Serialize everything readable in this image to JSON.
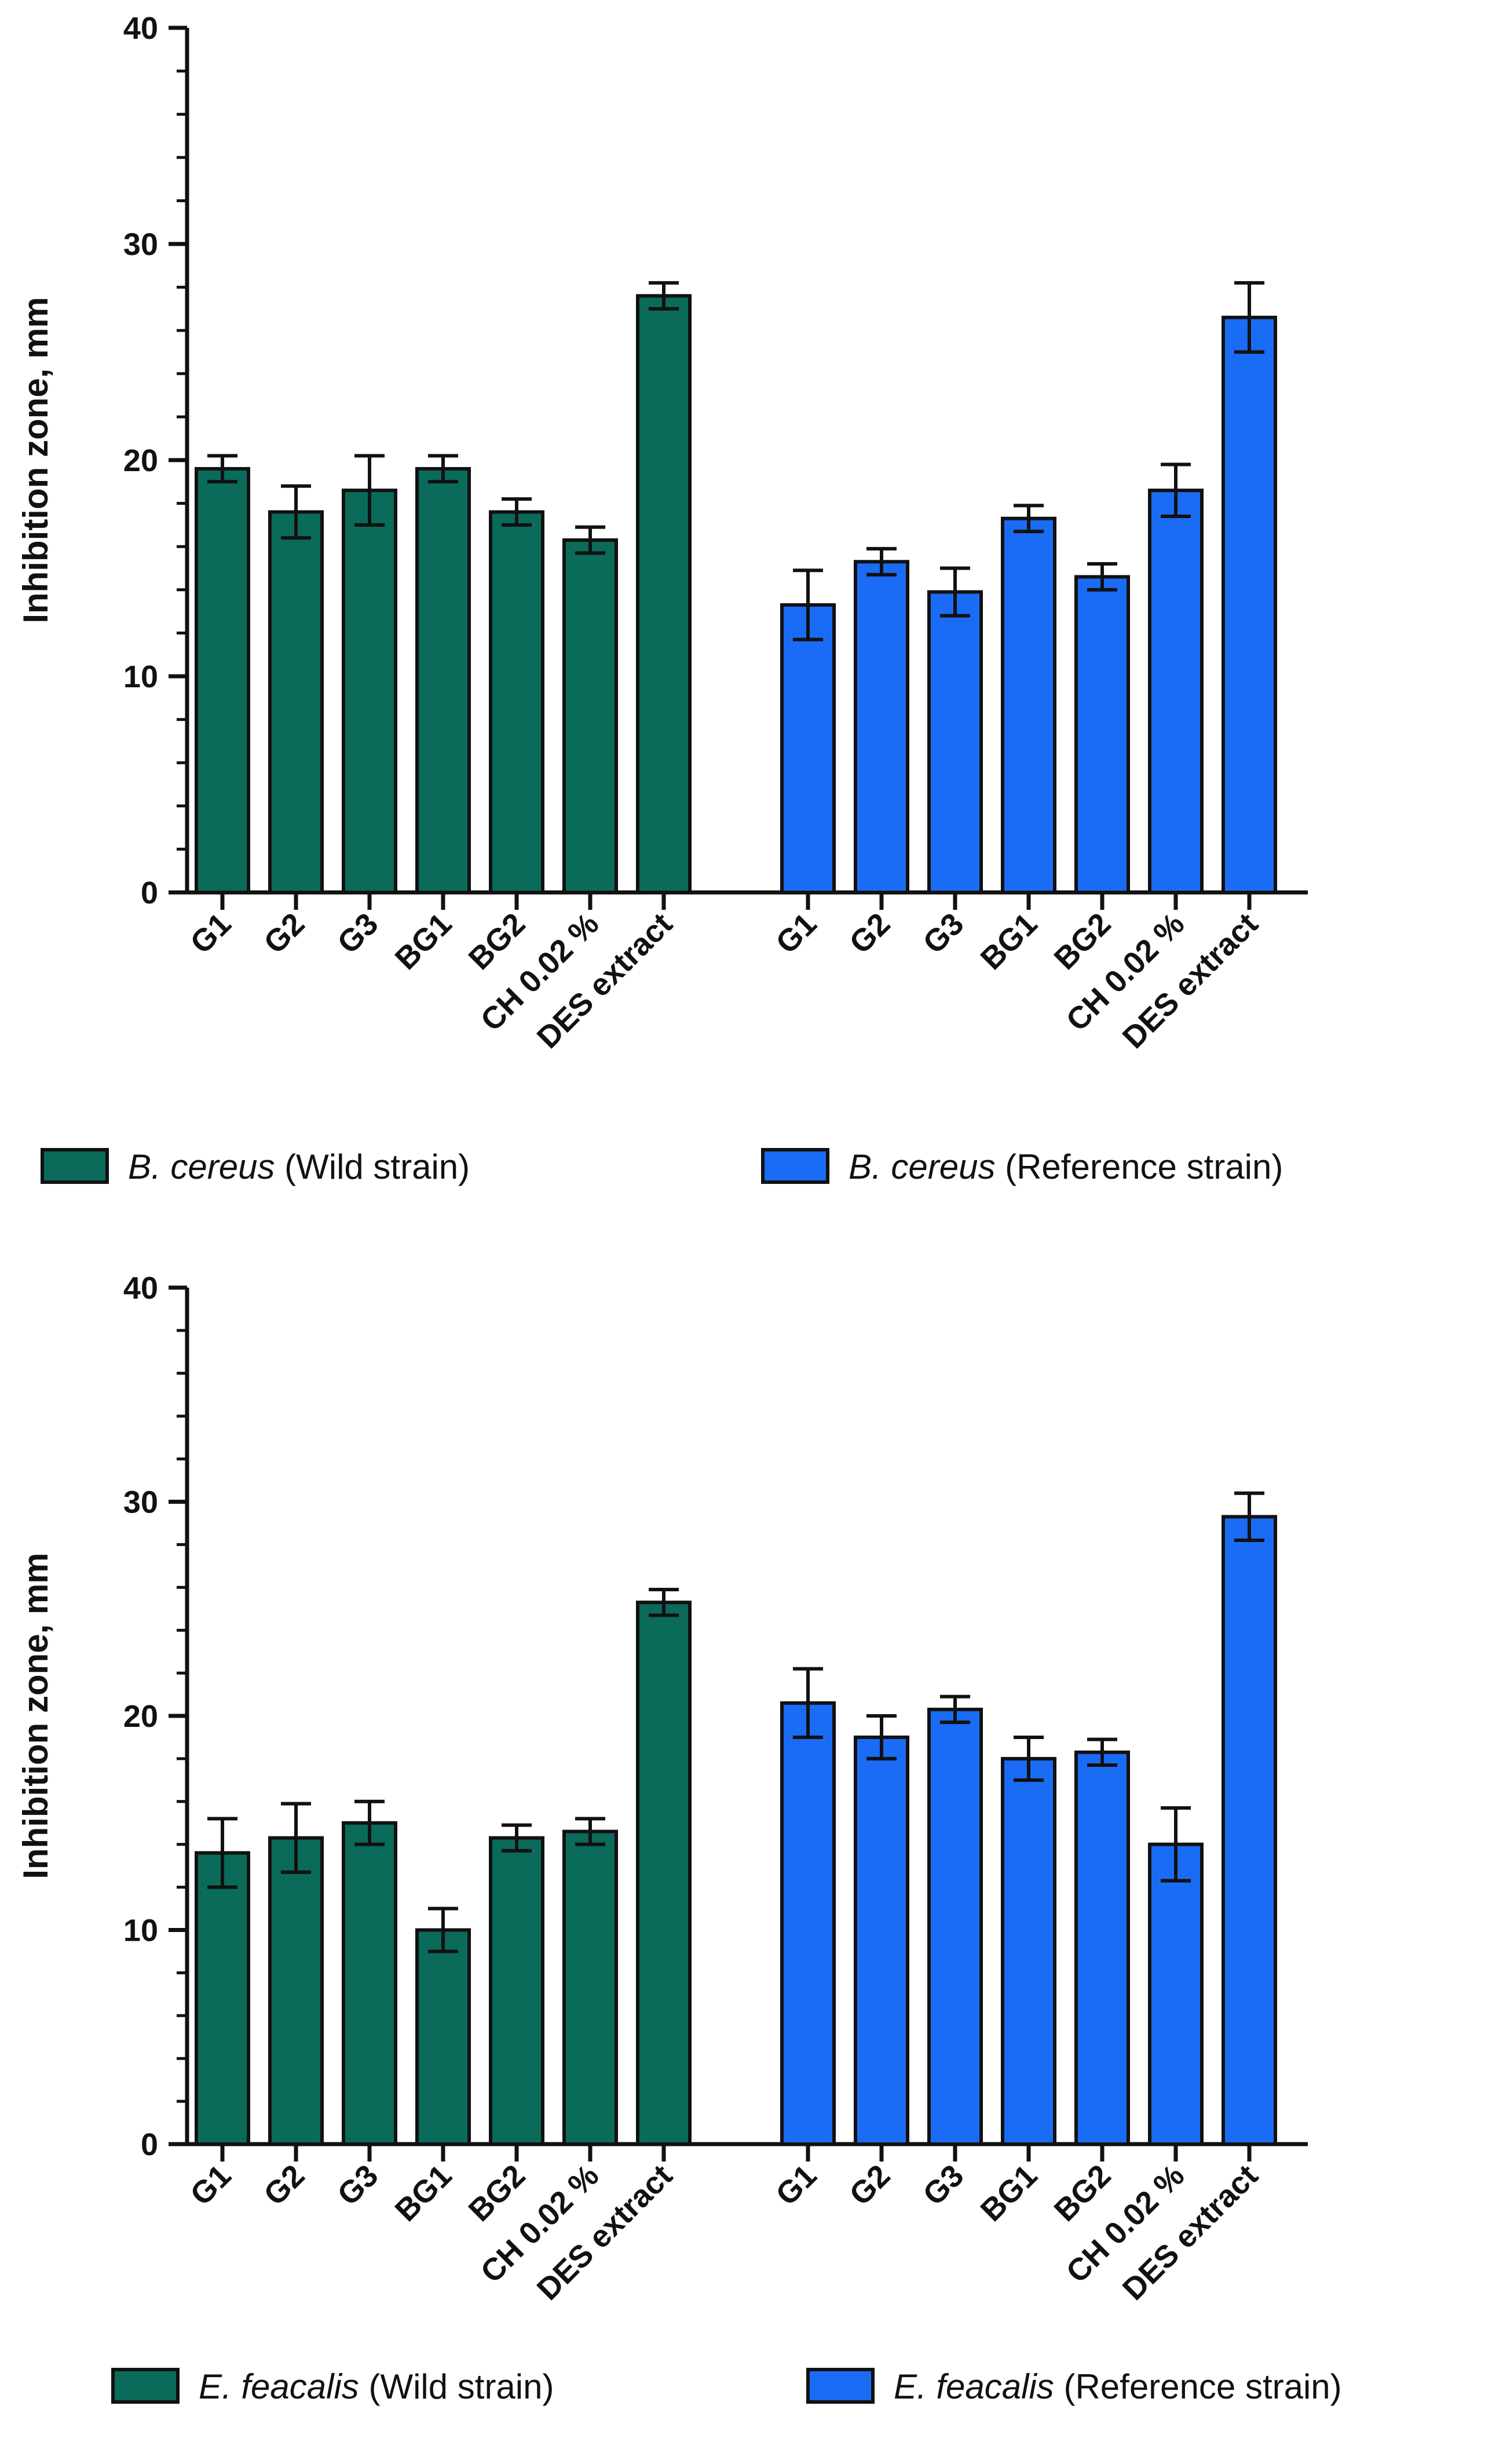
{
  "chart_data": [
    {
      "type": "bar",
      "ylabel": "Inhibition zone, mm",
      "ylim": [
        0,
        40
      ],
      "yticks": [
        "0",
        "10",
        "20",
        "30",
        "40"
      ],
      "groups": [
        {
          "name": "B. cereus (Wild strain)",
          "legend_italic": "B. cereus",
          "legend_rest": " (Wild strain)",
          "color": "#0a6b5a",
          "categories": [
            "G1",
            "G2",
            "G3",
            "BG1",
            "BG2",
            "CH 0.02 %",
            "DES extract"
          ],
          "values": [
            19.6,
            17.6,
            18.6,
            19.6,
            17.6,
            16.3,
            27.6
          ],
          "errors": [
            0.6,
            1.2,
            1.6,
            0.6,
            0.6,
            0.6,
            0.6
          ]
        },
        {
          "name": "B. cereus (Reference strain)",
          "legend_italic": "B. cereus",
          "legend_rest": " (Reference strain)",
          "color": "#1a6cf5",
          "categories": [
            "G1",
            "G2",
            "G3",
            "BG1",
            "BG2",
            "CH 0.02 %",
            "DES extract"
          ],
          "values": [
            13.3,
            15.3,
            13.9,
            17.3,
            14.6,
            18.6,
            26.6
          ],
          "errors": [
            1.6,
            0.6,
            1.1,
            0.6,
            0.6,
            1.2,
            1.6
          ]
        }
      ]
    },
    {
      "type": "bar",
      "ylabel": "Inhibition zone, mm",
      "ylim": [
        0,
        40
      ],
      "yticks": [
        "0",
        "10",
        "20",
        "30",
        "40"
      ],
      "groups": [
        {
          "name": "E. feacalis (Wild strain)",
          "legend_italic": "E. feacalis",
          "legend_rest": " (Wild strain)",
          "color": "#0a6b5a",
          "categories": [
            "G1",
            "G2",
            "G3",
            "BG1",
            "BG2",
            "CH 0.02 %",
            "DES extract"
          ],
          "values": [
            13.6,
            14.3,
            15.0,
            10.0,
            14.3,
            14.6,
            25.3
          ],
          "errors": [
            1.6,
            1.6,
            1.0,
            1.0,
            0.6,
            0.6,
            0.6
          ]
        },
        {
          "name": "E. feacalis (Reference strain)",
          "legend_italic": "E. feacalis",
          "legend_rest": " (Reference strain)",
          "color": "#1a6cf5",
          "categories": [
            "G1",
            "G2",
            "G3",
            "BG1",
            "BG2",
            "CH 0.02 %",
            "DES extract"
          ],
          "values": [
            20.6,
            19.0,
            20.3,
            18.0,
            18.3,
            14.0,
            29.3
          ],
          "errors": [
            1.6,
            1.0,
            0.6,
            1.0,
            0.6,
            1.7,
            1.1
          ]
        }
      ]
    }
  ]
}
